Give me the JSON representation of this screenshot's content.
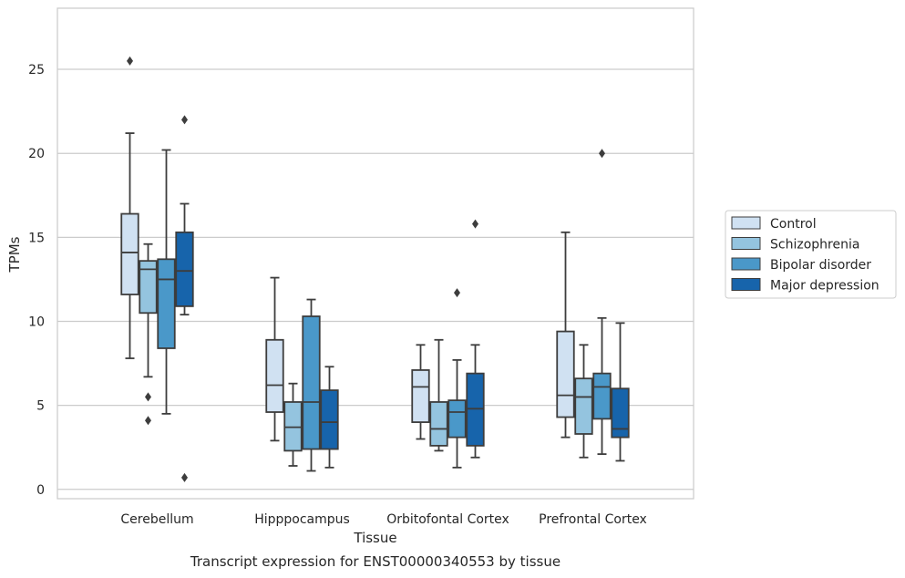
{
  "chart_data": {
    "type": "box",
    "title": "",
    "caption": "Transcript expression for ENST00000340553 by tissue",
    "xlabel": "Tissue",
    "ylabel": "TPMs",
    "ylim": [
      -0.5,
      28.5
    ],
    "yticks": [
      0,
      5,
      10,
      15,
      20,
      25
    ],
    "grid": "horizontal",
    "legend_position": "right",
    "categories": [
      "Cerebellum",
      "Hipppocampus",
      "Orbitofontal Cortex",
      "Prefrontal Cortex"
    ],
    "series": [
      {
        "name": "Control",
        "color": "#d0e1f2",
        "boxes": [
          {
            "whisker_low": 7.8,
            "q1": 11.6,
            "median": 14.1,
            "q3": 16.4,
            "whisker_high": 21.2,
            "outliers": [
              25.5
            ]
          },
          {
            "whisker_low": 2.9,
            "q1": 4.6,
            "median": 6.2,
            "q3": 8.9,
            "whisker_high": 12.6,
            "outliers": []
          },
          {
            "whisker_low": 3.0,
            "q1": 4.0,
            "median": 6.1,
            "q3": 7.1,
            "whisker_high": 8.6,
            "outliers": []
          },
          {
            "whisker_low": 3.1,
            "q1": 4.3,
            "median": 5.6,
            "q3": 9.4,
            "whisker_high": 15.3,
            "outliers": []
          }
        ]
      },
      {
        "name": "Schizophrenia",
        "color": "#94c4df",
        "boxes": [
          {
            "whisker_low": 6.7,
            "q1": 10.5,
            "median": 13.1,
            "q3": 13.6,
            "whisker_high": 14.6,
            "outliers": [
              5.5,
              4.1
            ]
          },
          {
            "whisker_low": 1.4,
            "q1": 2.3,
            "median": 3.7,
            "q3": 5.2,
            "whisker_high": 6.3,
            "outliers": []
          },
          {
            "whisker_low": 2.3,
            "q1": 2.6,
            "median": 3.6,
            "q3": 5.2,
            "whisker_high": 8.9,
            "outliers": []
          },
          {
            "whisker_low": 1.9,
            "q1": 3.3,
            "median": 5.5,
            "q3": 6.6,
            "whisker_high": 8.6,
            "outliers": []
          }
        ]
      },
      {
        "name": "Bipolar disorder",
        "color": "#4a98c9",
        "boxes": [
          {
            "whisker_low": 4.5,
            "q1": 8.4,
            "median": 12.5,
            "q3": 13.7,
            "whisker_high": 20.2,
            "outliers": []
          },
          {
            "whisker_low": 1.1,
            "q1": 2.4,
            "median": 5.2,
            "q3": 10.3,
            "whisker_high": 11.3,
            "outliers": []
          },
          {
            "whisker_low": 1.3,
            "q1": 3.1,
            "median": 4.6,
            "q3": 5.3,
            "whisker_high": 7.7,
            "outliers": [
              11.7
            ]
          },
          {
            "whisker_low": 2.1,
            "q1": 4.2,
            "median": 6.1,
            "q3": 6.9,
            "whisker_high": 10.2,
            "outliers": [
              20.0
            ]
          }
        ]
      },
      {
        "name": "Major depression",
        "color": "#1764ab",
        "boxes": [
          {
            "whisker_low": 10.4,
            "q1": 10.9,
            "median": 13.0,
            "q3": 15.3,
            "whisker_high": 17.0,
            "outliers": [
              22.0,
              0.7
            ]
          },
          {
            "whisker_low": 1.3,
            "q1": 2.4,
            "median": 4.0,
            "q3": 5.9,
            "whisker_high": 7.3,
            "outliers": []
          },
          {
            "whisker_low": 1.9,
            "q1": 2.6,
            "median": 4.8,
            "q3": 6.9,
            "whisker_high": 8.6,
            "outliers": [
              15.8
            ]
          },
          {
            "whisker_low": 1.7,
            "q1": 3.1,
            "median": 3.6,
            "q3": 6.0,
            "whisker_high": 9.9,
            "outliers": []
          }
        ]
      }
    ]
  }
}
